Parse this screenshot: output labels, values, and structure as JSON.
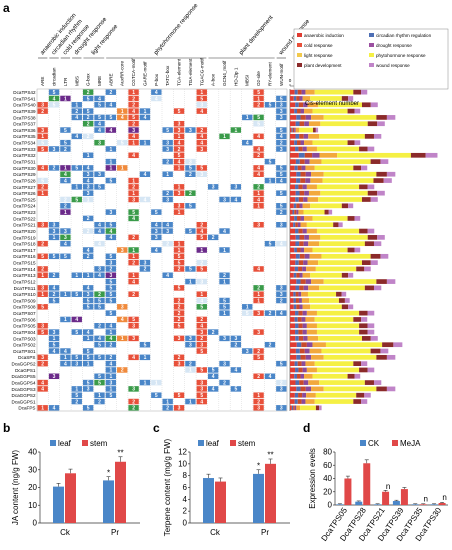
{
  "panel_a": {
    "label": "a",
    "categories_top": [
      "anaerobic induction",
      "circadian rhythm",
      "cold response",
      "drought response",
      "light response",
      "phytohormone response",
      "plant development",
      "wound response"
    ],
    "elements": [
      "ARE",
      "circadian",
      "LTR",
      "MBS",
      "G-box",
      "MRE",
      "ABRE",
      "AuxRR-core",
      "CGTCA-motif",
      "GARE-motif",
      "P-box",
      "TATC-box",
      "TCA-element",
      "TGA-element",
      "TGACG-motif",
      "A-box",
      "GCN4_motif",
      "HD-Zip 1",
      "MBSI",
      "O2-site",
      "RY-element",
      "WUN-motif"
    ],
    "genes": [
      "DcaTPS42",
      "DcaTPS41",
      "DcaTPS40",
      "DcaTPS39",
      "DcaTPS38",
      "DcaTPS37",
      "DcaTPS36",
      "DcaTPS35",
      "DcaTPS34",
      "DcaTPS33",
      "DcaTPS32",
      "DcaTPS31",
      "DcaTPS30",
      "DcaTPS29",
      "DcaTPS28",
      "DcaTPS27",
      "DcaTPS26",
      "DcaTPS25",
      "DcaTPS24",
      "DcaTPS23",
      "DcaTPS22",
      "DcaTPS21",
      "DcaTPS20",
      "DcaTPS19",
      "DcaTPS18",
      "DcaTPS17",
      "DcaTPS16",
      "DcaTPS15",
      "DcaTPS14",
      "DcaTPS13",
      "DcaTPS12",
      "DcaTPS11",
      "DcaTPS10",
      "DcaTPS09",
      "DcaTPS08",
      "DcaTPS07",
      "DcaTPS06",
      "DcaTPS05",
      "DcaTPS04",
      "DcaTPS03",
      "DcaTPS02",
      "DcaTPS01",
      "DcaSPS",
      "DcaGGPS2",
      "DcaGPS1",
      "DcaGGPS5",
      "DcaGGPS4",
      "DcaGGPS3",
      "DcaGGPS2",
      "DcaGGPS1",
      "DcaFPS"
    ],
    "legend": [
      "anaerobic induction",
      "circadian rhythm regulation",
      "cold response",
      "drought response",
      "light response",
      "phytohormone response",
      "plant development",
      "wound response"
    ],
    "legend_colors": [
      "#e03c31",
      "#4e6fb5",
      "#e8503a",
      "#9b4fa0",
      "#f2c94c",
      "#f5f044",
      "#8b2a2a",
      "#c084c8"
    ],
    "cis_title": "Cis-element number",
    "cis_ticks": [
      "0",
      "10",
      "20",
      "30",
      "40"
    ]
  },
  "panel_b": {
    "label": "b",
    "ylabel": "JA content (ng/g FW)",
    "legend": [
      "leaf",
      "stem"
    ],
    "categories": [
      "Ck",
      "Pr"
    ],
    "ticks": [
      "0",
      "10",
      "20",
      "30",
      "40"
    ],
    "sig": [
      "*",
      "**"
    ]
  },
  "panel_c": {
    "label": "c",
    "ylabel": "Terpene content (mg/g FW)",
    "legend": [
      "leaf",
      "stem"
    ],
    "categories": [
      "Ck",
      "Pr"
    ],
    "ticks": [
      "0",
      "2",
      "4",
      "6",
      "8",
      "10",
      "12"
    ],
    "sig": [
      "*",
      "**"
    ]
  },
  "panel_d": {
    "label": "d",
    "ylabel": "Expression evels",
    "legend": [
      "CK",
      "MeJA"
    ],
    "categories": [
      "DcaTPS05",
      "DcaTPS28",
      "DcaTPS21",
      "DcaTPS39",
      "DcaTPS35",
      "DcaTPS30"
    ],
    "ticks": [
      "0",
      "20",
      "40",
      "60",
      "80"
    ],
    "ns": "n"
  },
  "chart_data": [
    {
      "type": "bar",
      "title": "",
      "ylabel": "Cis-element number",
      "xlabel": "",
      "categories": [
        "DcaTPS42",
        "DcaTPS41",
        "DcaTPS40",
        "DcaTPS39",
        "DcaTPS38",
        "DcaTPS37",
        "DcaTPS36",
        "DcaTPS35",
        "DcaTPS34",
        "DcaTPS33",
        "DcaTPS32",
        "DcaTPS31",
        "DcaTPS30",
        "DcaTPS29",
        "DcaTPS28",
        "DcaTPS27",
        "DcaTPS26",
        "DcaTPS25",
        "DcaTPS24",
        "DcaTPS23",
        "DcaTPS22",
        "DcaTPS21",
        "DcaTPS20",
        "DcaTPS19",
        "DcaTPS18",
        "DcaTPS17",
        "DcaTPS16",
        "DcaTPS15",
        "DcaTPS14",
        "DcaTPS13",
        "DcaTPS12",
        "DcaTPS11",
        "DcaTPS10",
        "DcaTPS09",
        "DcaTPS08",
        "DcaTPS07",
        "DcaTPS06",
        "DcaTPS05",
        "DcaTPS04",
        "DcaTPS03",
        "DcaTPS02",
        "DcaTPS01",
        "DcaSPS",
        "DcaGGPS2",
        "DcaGPS1",
        "DcaGGPS5",
        "DcaGGPS4",
        "DcaGGPS3",
        "DcaGGPS2",
        "DcaGGPS1",
        "DcaFPS"
      ],
      "values": [
        22,
        18,
        25,
        20,
        30,
        27,
        8,
        26,
        20,
        24,
        42,
        28,
        22,
        30,
        29,
        24,
        27,
        25,
        18,
        12,
        20,
        15,
        24,
        27,
        26,
        20,
        28,
        25,
        23,
        18,
        30,
        26,
        16,
        17,
        18,
        24,
        22,
        24,
        24,
        25,
        32,
        28,
        30,
        22,
        24,
        20,
        26,
        30,
        23,
        22,
        9
      ],
      "ylim": [
        0,
        45
      ]
    },
    {
      "type": "bar",
      "title": "",
      "ylabel": "JA content (ng/g FW)",
      "categories": [
        "Ck",
        "Pr"
      ],
      "series": [
        {
          "name": "leaf",
          "values": [
            20.5,
            24
          ]
        },
        {
          "name": "stem",
          "values": [
            28,
            34.5
          ]
        }
      ],
      "ylim": [
        0,
        40
      ]
    },
    {
      "type": "bar",
      "title": "",
      "ylabel": "Terpene content (mg/g FW)",
      "categories": [
        "Ck",
        "Pr"
      ],
      "series": [
        {
          "name": "leaf",
          "values": [
            7.6,
            8.3
          ]
        },
        {
          "name": "stem",
          "values": [
            7.0,
            10.0
          ]
        }
      ],
      "ylim": [
        0,
        12
      ]
    },
    {
      "type": "bar",
      "title": "",
      "ylabel": "Expression evels",
      "categories": [
        "DcaTPS05",
        "DcaTPS28",
        "DcaTPS21",
        "DcaTPS39",
        "DcaTPS35",
        "DcaTPS30"
      ],
      "series": [
        {
          "name": "CK",
          "values": [
            1,
            5,
            1,
            6,
            1,
            1
          ]
        },
        {
          "name": "MeJA",
          "values": [
            40,
            63,
            20,
            24,
            1,
            3
          ]
        }
      ],
      "ylim": [
        0,
        80
      ]
    }
  ]
}
